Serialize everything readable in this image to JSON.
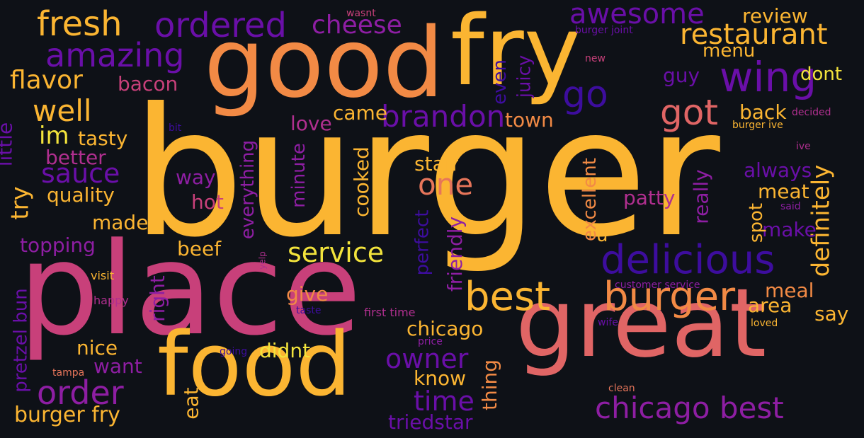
{
  "palette": {
    "background": "#0e1117",
    "dark_purple": "#3d0d9e",
    "purple": "#6a0fa8",
    "violet": "#8e1ea3",
    "magenta": "#b02f8f",
    "pink": "#c8407a",
    "salmon": "#e06565",
    "orange_red": "#e6755a",
    "orange": "#f28a45",
    "amber": "#f9a830",
    "gold": "#fbb532",
    "yellow": "#f2e33c"
  },
  "words": [
    {
      "text": "burger",
      "color": "gold"
    },
    {
      "text": "place",
      "color": "pink"
    },
    {
      "text": "good",
      "color": "orange"
    },
    {
      "text": "fry",
      "color": "gold"
    },
    {
      "text": "great",
      "color": "salmon"
    },
    {
      "text": "food",
      "color": "gold"
    },
    {
      "text": "delicious",
      "color": "dark_purple"
    },
    {
      "text": "best",
      "color": "gold"
    },
    {
      "text": "burger",
      "color": "orange"
    },
    {
      "text": "wing",
      "color": "purple"
    },
    {
      "text": "go",
      "color": "dark_purple"
    },
    {
      "text": "chicago best",
      "color": "violet"
    },
    {
      "text": "fresh",
      "color": "gold"
    },
    {
      "text": "ordered",
      "color": "purple"
    },
    {
      "text": "amazing",
      "color": "purple"
    },
    {
      "text": "awesome",
      "color": "purple"
    },
    {
      "text": "restaurant",
      "color": "gold"
    },
    {
      "text": "cheese",
      "color": "violet"
    },
    {
      "text": "order",
      "color": "violet"
    },
    {
      "text": "well",
      "color": "gold"
    },
    {
      "text": "got",
      "color": "salmon"
    },
    {
      "text": "brandon",
      "color": "purple"
    },
    {
      "text": "one",
      "color": "orange_red"
    },
    {
      "text": "definitely",
      "color": "gold"
    },
    {
      "text": "service",
      "color": "yellow"
    },
    {
      "text": "owner",
      "color": "purple"
    },
    {
      "text": "time",
      "color": "purple"
    },
    {
      "text": "flavor",
      "color": "gold"
    },
    {
      "text": "sauce",
      "color": "purple"
    },
    {
      "text": "try",
      "color": "gold"
    },
    {
      "text": "im",
      "color": "yellow"
    },
    {
      "text": "review",
      "color": "gold"
    },
    {
      "text": "menu",
      "color": "gold"
    },
    {
      "text": "dont",
      "color": "yellow"
    },
    {
      "text": "guy",
      "color": "purple"
    },
    {
      "text": "back",
      "color": "gold"
    },
    {
      "text": "juicy",
      "color": "purple"
    },
    {
      "text": "even",
      "color": "dark_purple"
    },
    {
      "text": "town",
      "color": "orange"
    },
    {
      "text": "came",
      "color": "gold"
    },
    {
      "text": "bacon",
      "color": "pink"
    },
    {
      "text": "tasty",
      "color": "gold"
    },
    {
      "text": "little",
      "color": "purple"
    },
    {
      "text": "better",
      "color": "magenta"
    },
    {
      "text": "quality",
      "color": "gold"
    },
    {
      "text": "made",
      "color": "gold"
    },
    {
      "text": "topping",
      "color": "violet"
    },
    {
      "text": "beef",
      "color": "gold"
    },
    {
      "text": "way",
      "color": "violet"
    },
    {
      "text": "hot",
      "color": "pink"
    },
    {
      "text": "love",
      "color": "magenta"
    },
    {
      "text": "staff",
      "color": "gold"
    },
    {
      "text": "cooked",
      "color": "gold"
    },
    {
      "text": "minute",
      "color": "violet"
    },
    {
      "text": "everything",
      "color": "violet"
    },
    {
      "text": "always",
      "color": "purple"
    },
    {
      "text": "meat",
      "color": "gold"
    },
    {
      "text": "patty",
      "color": "magenta"
    },
    {
      "text": "make",
      "color": "purple"
    },
    {
      "text": "spot",
      "color": "gold"
    },
    {
      "text": "really",
      "color": "violet"
    },
    {
      "text": "excellent",
      "color": "orange"
    },
    {
      "text": "u",
      "color": "gold"
    },
    {
      "text": "friendly",
      "color": "violet"
    },
    {
      "text": "perfect",
      "color": "dark_purple"
    },
    {
      "text": "meal",
      "color": "orange"
    },
    {
      "text": "area",
      "color": "gold"
    },
    {
      "text": "say",
      "color": "gold"
    },
    {
      "text": "chicago",
      "color": "gold"
    },
    {
      "text": "give",
      "color": "orange"
    },
    {
      "text": "right",
      "color": "violet"
    },
    {
      "text": "nice",
      "color": "gold"
    },
    {
      "text": "didnt",
      "color": "yellow"
    },
    {
      "text": "want",
      "color": "violet"
    },
    {
      "text": "eat",
      "color": "gold"
    },
    {
      "text": "know",
      "color": "gold"
    },
    {
      "text": "thing",
      "color": "orange"
    },
    {
      "text": "triedstar",
      "color": "purple"
    },
    {
      "text": "burger fry",
      "color": "gold"
    },
    {
      "text": "pretzel bun",
      "color": "purple"
    },
    {
      "text": "visit",
      "color": "gold"
    },
    {
      "text": "happy",
      "color": "magenta"
    },
    {
      "text": "tampa",
      "color": "orange_red"
    },
    {
      "text": "yelp",
      "color": "magenta"
    },
    {
      "text": "first time",
      "color": "magenta"
    },
    {
      "text": "taste",
      "color": "dark_purple"
    },
    {
      "text": "price",
      "color": "violet"
    },
    {
      "text": "going",
      "color": "dark_purple"
    },
    {
      "text": "clean",
      "color": "orange_red"
    },
    {
      "text": "wife",
      "color": "purple"
    },
    {
      "text": "loved",
      "color": "gold"
    },
    {
      "text": "customer service",
      "color": "violet"
    },
    {
      "text": "said",
      "color": "violet"
    },
    {
      "text": "ive",
      "color": "magenta"
    },
    {
      "text": "decided",
      "color": "magenta"
    },
    {
      "text": "burger ive",
      "color": "gold"
    },
    {
      "text": "bit",
      "color": "dark_purple"
    },
    {
      "text": "new",
      "color": "pink"
    },
    {
      "text": "wasnt",
      "color": "pink"
    },
    {
      "text": "burger joint",
      "color": "purple"
    }
  ]
}
